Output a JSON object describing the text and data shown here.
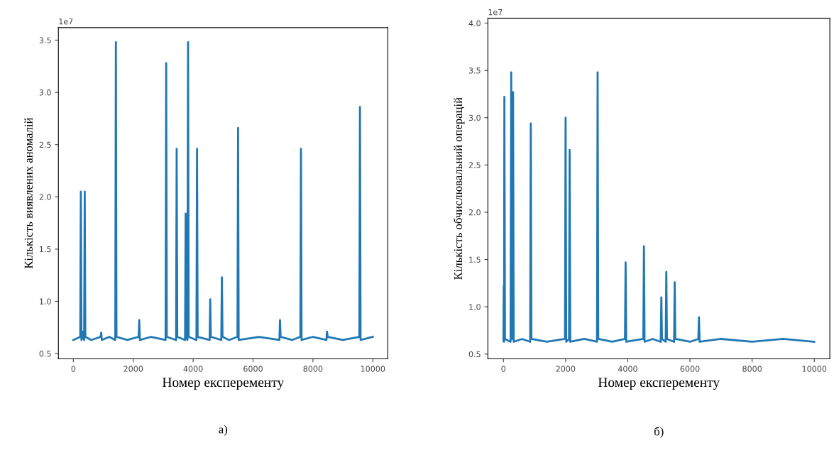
{
  "chart_data": [
    {
      "type": "line",
      "xlabel": "Номер експеременту",
      "ylabel": "Кількість виявлених аномалій",
      "annotations": [
        "1e7",
        "а)"
      ],
      "xlim": [
        -500,
        10500
      ],
      "xticks": [
        0,
        2000,
        4000,
        6000,
        8000,
        10000
      ],
      "ylim": [
        0.45,
        3.62
      ],
      "yticks": [
        0.5,
        {
          "value": 1,
          "label": "1.0"
        },
        1.5,
        {
          "value": 2,
          "label": "2.0"
        },
        2.5,
        {
          "value": 3,
          "label": "3.0"
        },
        3.5
      ],
      "grid": false,
      "legend": false,
      "series": [
        {
          "color": "#1f77b4",
          "x": [
            0,
            230,
            250,
            270,
            300,
            320,
            360,
            380,
            400,
            600,
            910,
            930,
            950,
            1200,
            1400,
            1420,
            1440,
            1800,
            2180,
            2200,
            2220,
            2600,
            3080,
            3100,
            3120,
            3430,
            3450,
            3470,
            3730,
            3750,
            3770,
            3810,
            3830,
            3850,
            4110,
            4130,
            4150,
            4550,
            4570,
            4590,
            4940,
            4960,
            4980,
            5200,
            5480,
            5500,
            5520,
            6200,
            6880,
            6900,
            6920,
            7300,
            7580,
            7600,
            7620,
            8000,
            8450,
            8470,
            8490,
            9000,
            9550,
            9570,
            9590,
            10000
          ],
          "values": [
            0.63,
            0.66,
            2.05,
            0.63,
            0.71,
            0.66,
            0.63,
            2.05,
            0.66,
            0.63,
            0.66,
            0.7,
            0.63,
            0.66,
            0.63,
            3.48,
            0.66,
            0.63,
            0.66,
            0.82,
            0.63,
            0.66,
            0.63,
            3.28,
            0.66,
            0.63,
            2.46,
            0.66,
            0.63,
            1.84,
            0.66,
            0.63,
            3.48,
            0.66,
            0.63,
            2.46,
            0.66,
            0.63,
            1.02,
            0.66,
            0.63,
            1.23,
            0.66,
            0.63,
            0.66,
            2.66,
            0.63,
            0.66,
            0.63,
            0.82,
            0.66,
            0.63,
            0.66,
            2.46,
            0.63,
            0.66,
            0.63,
            0.71,
            0.66,
            0.63,
            0.66,
            2.86,
            0.63,
            0.66
          ]
        }
      ]
    },
    {
      "type": "line",
      "xlabel": "Номер експеременту",
      "ylabel": "Кількість обчислювальний операцій",
      "annotations": [
        "1e7",
        "б)"
      ],
      "xlim": [
        -500,
        10500
      ],
      "xticks": [
        0,
        2000,
        4000,
        6000,
        8000,
        10000
      ],
      "ylim": [
        0.45,
        4.05
      ],
      "yticks": [
        0.5,
        {
          "value": 1,
          "label": "1.0"
        },
        1.5,
        {
          "value": 2,
          "label": "2.0"
        },
        2.5,
        {
          "value": 3,
          "label": "3.0"
        },
        3.5,
        {
          "value": 4,
          "label": "4.0"
        }
      ],
      "grid": false,
      "legend": false,
      "series": [
        {
          "color": "#1f77b4",
          "x": [
            0,
            10,
            20,
            30,
            50,
            230,
            250,
            280,
            310,
            330,
            600,
            860,
            880,
            900,
            1400,
            1980,
            2000,
            2020,
            2110,
            2130,
            2150,
            2600,
            3010,
            3030,
            3050,
            3500,
            3910,
            3930,
            3950,
            4500,
            4520,
            4540,
            4800,
            5060,
            5080,
            5100,
            5220,
            5240,
            5260,
            5490,
            5510,
            5530,
            6000,
            6270,
            6290,
            6310,
            7000,
            8000,
            9000,
            10000
          ],
          "values": [
            0.64,
            1.22,
            0.63,
            3.22,
            0.66,
            0.63,
            3.48,
            0.66,
            3.27,
            0.63,
            0.66,
            0.63,
            2.94,
            0.66,
            0.63,
            0.66,
            3.0,
            0.63,
            0.66,
            2.66,
            0.63,
            0.66,
            0.63,
            3.48,
            0.66,
            0.63,
            0.66,
            1.47,
            0.63,
            0.66,
            1.64,
            0.63,
            0.66,
            0.63,
            1.1,
            0.66,
            0.63,
            1.37,
            0.66,
            0.63,
            1.26,
            0.66,
            0.63,
            0.66,
            0.89,
            0.63,
            0.66,
            0.63,
            0.66,
            0.63
          ]
        }
      ]
    }
  ]
}
